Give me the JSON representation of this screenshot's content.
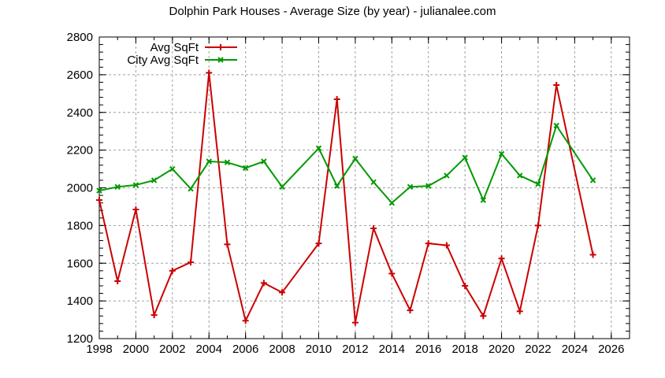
{
  "chart_data": {
    "type": "line",
    "title": "Dolphin Park Houses - Average Size (by year) - julianalee.com",
    "xlabel": "",
    "ylabel": "",
    "xlim": [
      1998,
      2027
    ],
    "ylim": [
      1200,
      2800
    ],
    "x_ticks": [
      "1998",
      "2000",
      "2002",
      "2004",
      "2006",
      "2008",
      "2010",
      "2012",
      "2014",
      "2016",
      "2018",
      "2020",
      "2022",
      "2024",
      "2026"
    ],
    "y_ticks": [
      "1200",
      "1400",
      "1600",
      "1800",
      "2000",
      "2200",
      "2400",
      "2600",
      "2800"
    ],
    "grid": true,
    "legend_position": "top-left",
    "series": [
      {
        "name": "Avg SqFt",
        "color": "#cc0000",
        "marker": "plus",
        "x": [
          1998,
          1999,
          2000,
          2001,
          2002,
          2003,
          2004,
          2005,
          2006,
          2007,
          2008,
          2010,
          2011,
          2012,
          2013,
          2014,
          2015,
          2016,
          2017,
          2018,
          2019,
          2020,
          2021,
          2022,
          2023,
          2025
        ],
        "values": [
          1935,
          1505,
          1885,
          1325,
          1560,
          1605,
          2610,
          1700,
          1295,
          1495,
          1445,
          1705,
          2470,
          1285,
          1785,
          1545,
          1350,
          1705,
          1695,
          1480,
          1320,
          1625,
          1345,
          1800,
          2545,
          1645
        ]
      },
      {
        "name": "City Avg SqFt",
        "color": "#009900",
        "marker": "x",
        "x": [
          1998,
          1999,
          2000,
          2001,
          2002,
          2003,
          2004,
          2005,
          2006,
          2007,
          2008,
          2010,
          2011,
          2012,
          2013,
          2014,
          2015,
          2016,
          2017,
          2018,
          2019,
          2020,
          2021,
          2022,
          2023,
          2025
        ],
        "values": [
          1985,
          2005,
          2015,
          2040,
          2100,
          1995,
          2140,
          2135,
          2105,
          2140,
          2005,
          2210,
          2010,
          2155,
          2030,
          1920,
          2005,
          2010,
          2065,
          2160,
          1935,
          2180,
          2065,
          2020,
          2330,
          2040
        ]
      }
    ]
  }
}
